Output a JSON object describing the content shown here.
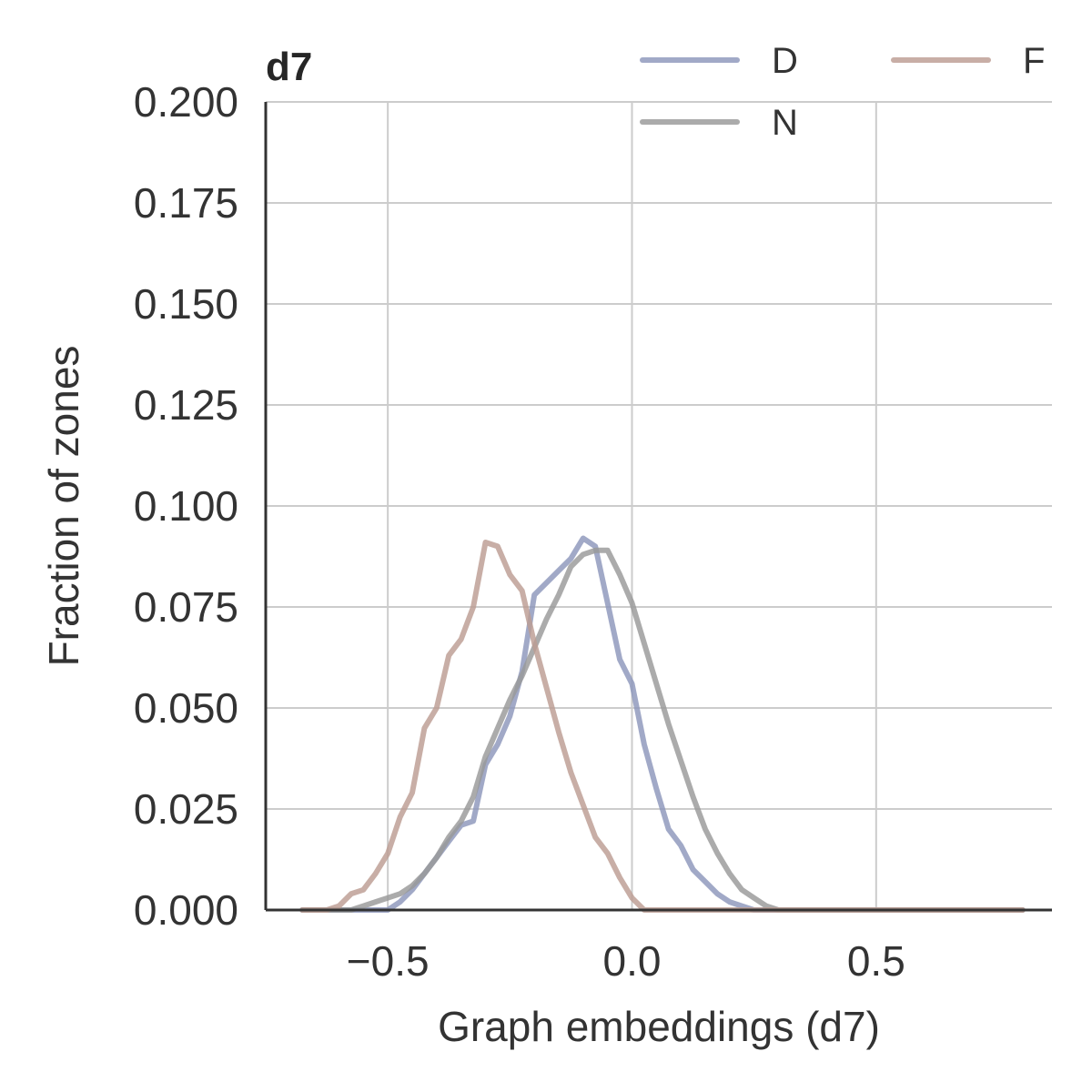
{
  "chart_data": {
    "type": "line",
    "title": "d7",
    "xlabel": "Graph embeddings (d7)",
    "ylabel": "Fraction of zones",
    "xlim": [
      -0.75,
      0.86
    ],
    "ylim": [
      0,
      0.2
    ],
    "xticks": [
      -0.5,
      0.0,
      0.5
    ],
    "xtick_labels": [
      "−0.5",
      "0.0",
      "0.5"
    ],
    "yticks": [
      0,
      0.025,
      0.05,
      0.075,
      0.1,
      0.125,
      0.15,
      0.175,
      0.2
    ],
    "ytick_labels": [
      "0.000",
      "0.025",
      "0.050",
      "0.075",
      "0.100",
      "0.125",
      "0.150",
      "0.175",
      "0.200"
    ],
    "grid": true,
    "legend": {
      "placement": "top-right",
      "columns": 2,
      "order": [
        "D",
        "F",
        "N"
      ]
    },
    "series": [
      {
        "name": "D",
        "color": "#8c96bb",
        "x": [
          -0.675,
          -0.625,
          -0.575,
          -0.525,
          -0.5,
          -0.475,
          -0.45,
          -0.425,
          -0.4,
          -0.375,
          -0.35,
          -0.325,
          -0.3,
          -0.275,
          -0.25,
          -0.225,
          -0.2,
          -0.175,
          -0.15,
          -0.125,
          -0.1,
          -0.075,
          -0.05,
          -0.025,
          0.0,
          0.025,
          0.05,
          0.075,
          0.1,
          0.125,
          0.15,
          0.175,
          0.2,
          0.225,
          0.25,
          0.275,
          0.3,
          0.325,
          0.35,
          0.375,
          0.4,
          0.425,
          0.45,
          0.475,
          0.5,
          0.525,
          0.55,
          0.6,
          0.65,
          0.7,
          0.8
        ],
        "y": [
          0.0,
          0.0,
          0.0,
          0.0,
          0.0,
          0.002,
          0.005,
          0.009,
          0.013,
          0.017,
          0.021,
          0.022,
          0.036,
          0.041,
          0.048,
          0.059,
          0.078,
          0.081,
          0.084,
          0.087,
          0.092,
          0.09,
          0.076,
          0.062,
          0.056,
          0.041,
          0.03,
          0.02,
          0.016,
          0.01,
          0.007,
          0.004,
          0.002,
          0.001,
          0.0,
          0.0,
          0.0,
          0.0,
          0.0,
          0.0,
          0.0,
          0.0,
          0.0,
          0.0,
          0.0,
          0.0,
          0.0,
          0.0,
          0.0,
          0.0,
          0.0
        ]
      },
      {
        "name": "N",
        "color": "#999999",
        "x": [
          -0.675,
          -0.65,
          -0.625,
          -0.6,
          -0.575,
          -0.55,
          -0.525,
          -0.5,
          -0.475,
          -0.45,
          -0.425,
          -0.4,
          -0.375,
          -0.35,
          -0.325,
          -0.3,
          -0.275,
          -0.25,
          -0.225,
          -0.2,
          -0.175,
          -0.15,
          -0.125,
          -0.1,
          -0.075,
          -0.05,
          -0.025,
          0.0,
          0.025,
          0.05,
          0.075,
          0.1,
          0.125,
          0.15,
          0.175,
          0.2,
          0.225,
          0.25,
          0.275,
          0.3,
          0.325,
          0.35,
          0.375,
          0.4,
          0.425,
          0.45,
          0.475,
          0.5,
          0.55,
          0.6,
          0.7,
          0.8
        ],
        "y": [
          0.0,
          0.0,
          0.0,
          0.0,
          0.0,
          0.001,
          0.002,
          0.003,
          0.004,
          0.006,
          0.009,
          0.013,
          0.018,
          0.022,
          0.028,
          0.038,
          0.045,
          0.052,
          0.058,
          0.065,
          0.072,
          0.078,
          0.085,
          0.088,
          0.089,
          0.089,
          0.083,
          0.076,
          0.066,
          0.056,
          0.046,
          0.037,
          0.028,
          0.02,
          0.014,
          0.009,
          0.005,
          0.003,
          0.001,
          0.0,
          0.0,
          0.0,
          0.0,
          0.0,
          0.0,
          0.0,
          0.0,
          0.0,
          0.0,
          0.0,
          0.0,
          0.0
        ]
      },
      {
        "name": "F",
        "color": "#bc9c93",
        "x": [
          -0.675,
          -0.65,
          -0.625,
          -0.6,
          -0.575,
          -0.55,
          -0.525,
          -0.5,
          -0.475,
          -0.45,
          -0.425,
          -0.4,
          -0.375,
          -0.35,
          -0.325,
          -0.3,
          -0.275,
          -0.25,
          -0.225,
          -0.2,
          -0.175,
          -0.15,
          -0.125,
          -0.1,
          -0.075,
          -0.05,
          -0.025,
          0.0,
          0.025,
          0.05,
          0.075,
          0.1,
          0.125,
          0.15,
          0.175,
          0.2,
          0.225,
          0.25,
          0.275,
          0.3,
          0.325,
          0.35,
          0.375,
          0.4,
          0.425,
          0.45,
          0.475,
          0.5,
          0.55,
          0.6,
          0.7,
          0.8
        ],
        "y": [
          0.0,
          0.0,
          0.0,
          0.001,
          0.004,
          0.005,
          0.009,
          0.014,
          0.023,
          0.029,
          0.045,
          0.05,
          0.063,
          0.067,
          0.075,
          0.091,
          0.09,
          0.083,
          0.079,
          0.066,
          0.055,
          0.044,
          0.034,
          0.026,
          0.018,
          0.014,
          0.008,
          0.003,
          0.0,
          0.0,
          0.0,
          0.0,
          0.0,
          0.0,
          0.0,
          0.0,
          0.0,
          0.0,
          0.0,
          0.0,
          0.0,
          0.0,
          0.0,
          0.0,
          0.0,
          0.0,
          0.0,
          0.0,
          0.0,
          0.0,
          0.0,
          0.0
        ]
      }
    ]
  }
}
